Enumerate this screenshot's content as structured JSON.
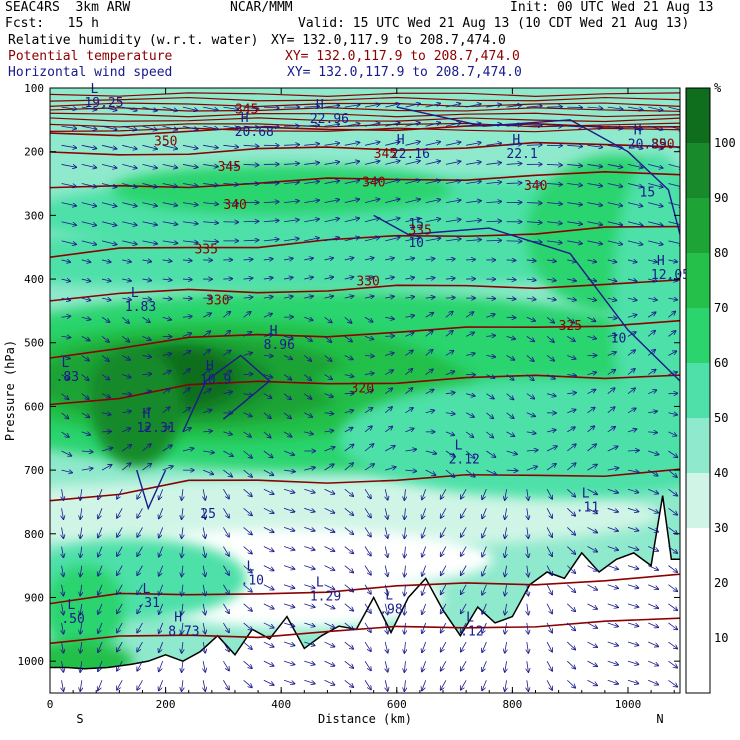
{
  "header": {
    "model": "SEAC4RS  3km ARW",
    "org": "NCAR/MMM",
    "init": "Init: 00 UTC Wed 21 Aug 13",
    "fcst": "Fcst:   15 h",
    "valid": "Valid: 15 UTC Wed 21 Aug 13 (10 CDT Wed 21 Aug 13)",
    "field1": "Relative humidity (w.r.t. water)",
    "field2": "Potential temperature",
    "field3": "Horizontal wind speed",
    "xy1": "XY= 132.0,117.9 to 208.7,474.0",
    "xy2": "XY= 132.0,117.9 to 208.7,474.0",
    "xy3": "XY= 132.0,117.9 to 208.7,474.0"
  },
  "colors": {
    "rh": [
      "#ffffff",
      "#ffffff",
      "#ffffff",
      "#d0f5e6",
      "#8fe9cc",
      "#4ee0a8",
      "#2cd46e",
      "#24c04a",
      "#1ea336",
      "#188a2c",
      "#0f6e1e"
    ],
    "theta": "#8b0000",
    "wind": "#1a1a8c",
    "terrain": "#000000"
  },
  "chart_data": {
    "type": "heatmap",
    "title": "Relative humidity (w.r.t. water)",
    "xlabel": "Distance (km)",
    "ylabel": "Pressure (hPa)",
    "xlim": [
      0,
      1090
    ],
    "ylim": [
      1050,
      100
    ],
    "x_ticks": [
      0,
      200,
      400,
      600,
      800,
      1000
    ],
    "y_ticks": [
      100,
      200,
      300,
      400,
      500,
      600,
      700,
      800,
      900,
      1000
    ],
    "x_end_labels": [
      "S",
      "N"
    ],
    "colorbar": {
      "unit": "%",
      "levels": [
        10,
        20,
        30,
        40,
        50,
        60,
        70,
        80,
        90,
        100
      ]
    },
    "theta_contours": [
      {
        "label": "320",
        "y": [
          597,
          583,
          567,
          565,
          562,
          560,
          558,
          554,
          552,
          549
        ]
      },
      {
        "label": "325",
        "y": [
          520,
          507,
          496,
          488,
          486,
          484,
          480,
          474,
          470,
          468
        ]
      },
      {
        "label": "330",
        "y": [
          430,
          425,
          420,
          418,
          416,
          414,
          412,
          410,
          408,
          406
        ]
      },
      {
        "label": "335",
        "y": [
          365,
          356,
          350,
          346,
          340,
          336,
          330,
          326,
          322,
          320
        ]
      },
      {
        "label": "340",
        "y": [
          260,
          256,
          252,
          248,
          246,
          244,
          240,
          238,
          236,
          234
        ]
      },
      {
        "label": "345",
        "y": [
          205,
          203,
          200,
          198,
          196,
          194,
          192,
          190,
          190,
          188
        ]
      },
      {
        "label": "350",
        "y": [
          172,
          170,
          168,
          166,
          164,
          162,
          162,
          160,
          158,
          158
        ]
      },
      {
        "label": "",
        "y": [
          745,
          735,
          720,
          718,
          716,
          715,
          712,
          708,
          705,
          700
        ]
      },
      {
        "label": "",
        "y": [
          905,
          895,
          900,
          892,
          888,
          885,
          880,
          876,
          872,
          868
        ]
      },
      {
        "label": "",
        "y": [
          970,
          965,
          960,
          958,
          954,
          950,
          946,
          942,
          940,
          936
        ]
      }
    ],
    "contour_x": [
      0,
      120,
      240,
      360,
      480,
      600,
      720,
      840,
      960,
      1090
    ],
    "terrain": {
      "x": [
        0,
        30,
        60,
        100,
        140,
        170,
        200,
        230,
        260,
        290,
        320,
        350,
        380,
        410,
        440,
        470,
        500,
        530,
        560,
        590,
        620,
        650,
        680,
        710,
        740,
        770,
        800,
        830,
        860,
        890,
        920,
        950,
        980,
        1010,
        1040,
        1060,
        1075,
        1090
      ],
      "p": [
        1010,
        1010,
        1012,
        1010,
        1005,
        1000,
        990,
        1000,
        985,
        960,
        990,
        950,
        965,
        930,
        980,
        960,
        945,
        950,
        900,
        955,
        900,
        870,
        920,
        960,
        915,
        940,
        930,
        880,
        860,
        870,
        830,
        860,
        840,
        830,
        850,
        740,
        840,
        840
      ]
    },
    "labels": [
      {
        "kind": "H",
        "value": "10.9",
        "x": 270,
        "p": 565
      },
      {
        "kind": "H",
        "value": "8.96",
        "x": 380,
        "p": 510
      },
      {
        "kind": "H",
        "value": "12.31",
        "x": 160,
        "p": 640
      },
      {
        "kind": "H",
        "value": "12.05",
        "x": 1050,
        "p": 400
      },
      {
        "kind": "H",
        "value": "8.73",
        "x": 215,
        "p": 960
      },
      {
        "kind": "H",
        "value": "20.89",
        "x": 1010,
        "p": 195
      },
      {
        "kind": "H",
        "value": "22.16",
        "x": 600,
        "p": 210
      },
      {
        "kind": "H",
        "value": "22.96",
        "x": 460,
        "p": 155
      },
      {
        "kind": "H",
        "value": "22.1",
        "x": 800,
        "p": 210
      },
      {
        "kind": "H",
        "value": "20.68",
        "x": 330,
        "p": 175
      },
      {
        "kind": "L",
        "value": "1.83",
        "x": 140,
        "p": 450
      },
      {
        "kind": "L",
        "value": ".83",
        "x": 20,
        "p": 560
      },
      {
        "kind": "L",
        "value": "2.12",
        "x": 700,
        "p": 690
      },
      {
        "kind": "L",
        "value": ".10",
        "x": 340,
        "p": 880
      },
      {
        "kind": "L",
        "value": "1.29",
        "x": 460,
        "p": 905
      },
      {
        "kind": "L",
        "value": ".98",
        "x": 580,
        "p": 925
      },
      {
        "kind": "L",
        "value": ".31",
        "x": 160,
        "p": 915
      },
      {
        "kind": "L",
        "value": ".50",
        "x": 30,
        "p": 940
      },
      {
        "kind": "L",
        "value": ".12",
        "x": 720,
        "p": 960
      },
      {
        "kind": "L",
        "value": ".11",
        "x": 920,
        "p": 765
      },
      {
        "kind": "L",
        "value": "19.25",
        "x": 70,
        "p": 130
      }
    ],
    "wind_labels": [
      {
        "value": "15",
        "x": 620,
        "p": 320
      },
      {
        "value": "10",
        "x": 620,
        "p": 350
      },
      {
        "value": "15",
        "x": 1020,
        "p": 270
      },
      {
        "value": "10",
        "x": 970,
        "p": 500
      },
      {
        "value": "25",
        "x": 260,
        "p": 775
      }
    ],
    "theta_value_labels": [
      {
        "value": "350",
        "x": 180,
        "p": 190
      },
      {
        "value": "345",
        "x": 290,
        "p": 230
      },
      {
        "value": "345",
        "x": 560,
        "p": 210
      },
      {
        "value": "340",
        "x": 300,
        "p": 290
      },
      {
        "value": "340",
        "x": 540,
        "p": 255
      },
      {
        "value": "335",
        "x": 250,
        "p": 360
      },
      {
        "value": "335",
        "x": 620,
        "p": 330
      },
      {
        "value": "330",
        "x": 270,
        "p": 440
      },
      {
        "value": "330",
        "x": 530,
        "p": 410
      },
      {
        "value": "325",
        "x": 880,
        "p": 480
      },
      {
        "value": "320",
        "x": 520,
        "p": 578
      },
      {
        "value": "350",
        "x": 1040,
        "p": 195
      },
      {
        "value": "345",
        "x": 320,
        "p": 140
      },
      {
        "value": "340",
        "x": 820,
        "p": 260
      }
    ]
  }
}
